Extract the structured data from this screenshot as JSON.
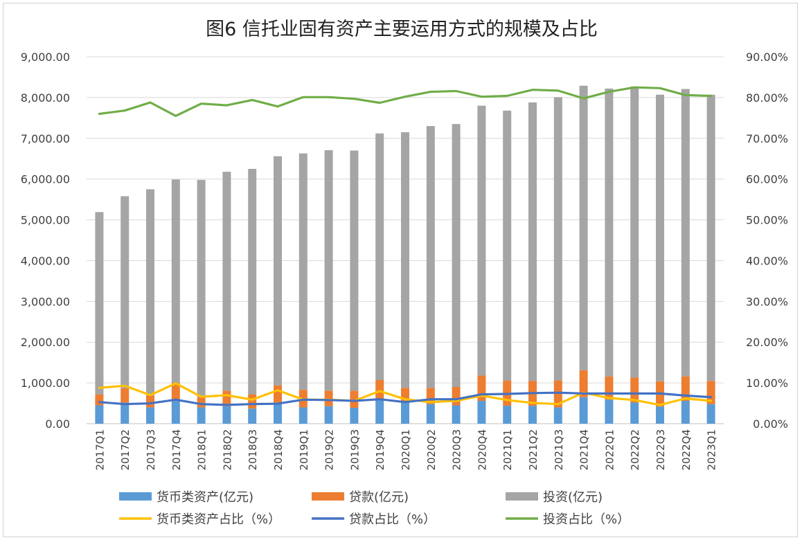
{
  "chart_data": {
    "type": "bar",
    "title": "图6  信托业固有资产主要运用方式的规模及占比",
    "categories": [
      "2017Q1",
      "2017Q2",
      "2017Q3",
      "2017Q4",
      "2018Q1",
      "2018Q2",
      "2018Q3",
      "2018Q4",
      "2019Q1",
      "2019Q2",
      "2019Q3",
      "2019Q4",
      "2020Q1",
      "2020Q2",
      "2020Q3",
      "2020Q4",
      "2021Q1",
      "2021Q2",
      "2021Q3",
      "2021Q4",
      "2022Q1",
      "2022Q2",
      "2022Q3",
      "2022Q4",
      "2023Q1"
    ],
    "y_left": {
      "min": 0,
      "max": 9000,
      "step": 1000,
      "tick_labels": [
        "0.00",
        "1,000.00",
        "2,000.00",
        "3,000.00",
        "4,000.00",
        "5,000.00",
        "6,000.00",
        "7,000.00",
        "8,000.00",
        "9,000.00"
      ]
    },
    "y_right": {
      "min": 0,
      "max": 90,
      "step": 10,
      "tick_labels": [
        "0.00%",
        "10.00%",
        "20.00%",
        "30.00%",
        "40.00%",
        "50.00%",
        "60.00%",
        "70.00%",
        "80.00%",
        "90.00%"
      ]
    },
    "bar_series": [
      {
        "name": "货币类资产(亿元)",
        "color": "#5b9bd5",
        "values": [
          450,
          520,
          400,
          600,
          400,
          430,
          370,
          520,
          400,
          430,
          390,
          580,
          550,
          480,
          450,
          560,
          440,
          440,
          400,
          650,
          590,
          520,
          420,
          560,
          480
        ]
      },
      {
        "name": "贷款(亿元)",
        "color": "#ed7d31",
        "values": [
          270,
          350,
          290,
          400,
          250,
          380,
          350,
          420,
          430,
          380,
          420,
          490,
          330,
          400,
          450,
          620,
          620,
          610,
          660,
          660,
          570,
          610,
          620,
          600,
          570
        ]
      },
      {
        "name": "投资(亿元)",
        "color": "#a5a5a5",
        "values": [
          4470,
          4710,
          5060,
          4990,
          5330,
          5370,
          5530,
          5620,
          5800,
          5900,
          5890,
          6050,
          6270,
          6420,
          6450,
          6620,
          6620,
          6830,
          6950,
          6980,
          7060,
          7140,
          7030,
          7050,
          7020
        ]
      }
    ],
    "line_series": [
      {
        "name": "货币类资产占比（%）",
        "color": "#ffc000",
        "values": [
          8.8,
          9.3,
          7.0,
          9.9,
          6.6,
          7.0,
          5.9,
          8.2,
          5.9,
          5.9,
          5.6,
          8.0,
          6.0,
          5.3,
          5.6,
          6.9,
          5.8,
          5.1,
          4.8,
          7.6,
          6.3,
          5.8,
          4.6,
          6.2,
          5.6
        ]
      },
      {
        "name": "贷款占比（%）",
        "color": "#4472c4",
        "values": [
          5.3,
          4.8,
          5.0,
          5.9,
          4.8,
          4.6,
          4.8,
          4.9,
          5.9,
          5.8,
          5.6,
          6.0,
          5.3,
          6.0,
          6.0,
          7.2,
          7.3,
          7.5,
          7.6,
          7.4,
          7.4,
          7.4,
          7.4,
          6.9,
          6.5
        ]
      },
      {
        "name": "投资占比（%）",
        "color": "#70ad47",
        "values": [
          76.0,
          76.8,
          78.8,
          75.5,
          78.5,
          78.1,
          79.4,
          77.8,
          80.1,
          80.1,
          79.7,
          78.7,
          80.2,
          81.4,
          81.6,
          80.2,
          80.4,
          81.9,
          81.7,
          79.8,
          81.4,
          82.5,
          82.3,
          80.6,
          80.4
        ]
      }
    ]
  }
}
